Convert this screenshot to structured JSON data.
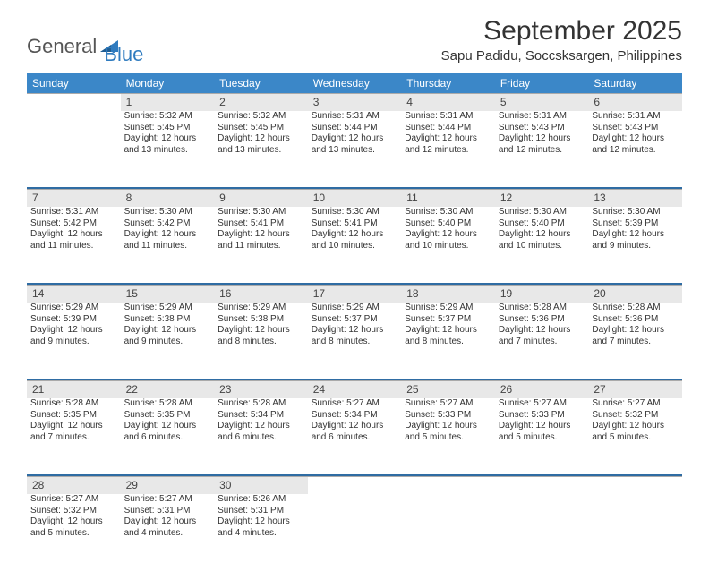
{
  "logo": {
    "general": "General",
    "blue": "Blue"
  },
  "title": "September 2025",
  "location": "Sapu Padidu, Soccsksargen, Philippines",
  "weekday_header_bg": "#3b87c8",
  "weekday_header_fg": "#ffffff",
  "daynum_bg": "#e8e8e8",
  "separator_color": "#2f6ca3",
  "weekdays": [
    "Sunday",
    "Monday",
    "Tuesday",
    "Wednesday",
    "Thursday",
    "Friday",
    "Saturday"
  ],
  "weeks": [
    {
      "nums": [
        "",
        "1",
        "2",
        "3",
        "4",
        "5",
        "6"
      ],
      "cells": [
        null,
        {
          "sunrise": "Sunrise: 5:32 AM",
          "sunset": "Sunset: 5:45 PM",
          "day1": "Daylight: 12 hours",
          "day2": "and 13 minutes."
        },
        {
          "sunrise": "Sunrise: 5:32 AM",
          "sunset": "Sunset: 5:45 PM",
          "day1": "Daylight: 12 hours",
          "day2": "and 13 minutes."
        },
        {
          "sunrise": "Sunrise: 5:31 AM",
          "sunset": "Sunset: 5:44 PM",
          "day1": "Daylight: 12 hours",
          "day2": "and 13 minutes."
        },
        {
          "sunrise": "Sunrise: 5:31 AM",
          "sunset": "Sunset: 5:44 PM",
          "day1": "Daylight: 12 hours",
          "day2": "and 12 minutes."
        },
        {
          "sunrise": "Sunrise: 5:31 AM",
          "sunset": "Sunset: 5:43 PM",
          "day1": "Daylight: 12 hours",
          "day2": "and 12 minutes."
        },
        {
          "sunrise": "Sunrise: 5:31 AM",
          "sunset": "Sunset: 5:43 PM",
          "day1": "Daylight: 12 hours",
          "day2": "and 12 minutes."
        }
      ]
    },
    {
      "nums": [
        "7",
        "8",
        "9",
        "10",
        "11",
        "12",
        "13"
      ],
      "cells": [
        {
          "sunrise": "Sunrise: 5:31 AM",
          "sunset": "Sunset: 5:42 PM",
          "day1": "Daylight: 12 hours",
          "day2": "and 11 minutes."
        },
        {
          "sunrise": "Sunrise: 5:30 AM",
          "sunset": "Sunset: 5:42 PM",
          "day1": "Daylight: 12 hours",
          "day2": "and 11 minutes."
        },
        {
          "sunrise": "Sunrise: 5:30 AM",
          "sunset": "Sunset: 5:41 PM",
          "day1": "Daylight: 12 hours",
          "day2": "and 11 minutes."
        },
        {
          "sunrise": "Sunrise: 5:30 AM",
          "sunset": "Sunset: 5:41 PM",
          "day1": "Daylight: 12 hours",
          "day2": "and 10 minutes."
        },
        {
          "sunrise": "Sunrise: 5:30 AM",
          "sunset": "Sunset: 5:40 PM",
          "day1": "Daylight: 12 hours",
          "day2": "and 10 minutes."
        },
        {
          "sunrise": "Sunrise: 5:30 AM",
          "sunset": "Sunset: 5:40 PM",
          "day1": "Daylight: 12 hours",
          "day2": "and 10 minutes."
        },
        {
          "sunrise": "Sunrise: 5:30 AM",
          "sunset": "Sunset: 5:39 PM",
          "day1": "Daylight: 12 hours",
          "day2": "and 9 minutes."
        }
      ]
    },
    {
      "nums": [
        "14",
        "15",
        "16",
        "17",
        "18",
        "19",
        "20"
      ],
      "cells": [
        {
          "sunrise": "Sunrise: 5:29 AM",
          "sunset": "Sunset: 5:39 PM",
          "day1": "Daylight: 12 hours",
          "day2": "and 9 minutes."
        },
        {
          "sunrise": "Sunrise: 5:29 AM",
          "sunset": "Sunset: 5:38 PM",
          "day1": "Daylight: 12 hours",
          "day2": "and 9 minutes."
        },
        {
          "sunrise": "Sunrise: 5:29 AM",
          "sunset": "Sunset: 5:38 PM",
          "day1": "Daylight: 12 hours",
          "day2": "and 8 minutes."
        },
        {
          "sunrise": "Sunrise: 5:29 AM",
          "sunset": "Sunset: 5:37 PM",
          "day1": "Daylight: 12 hours",
          "day2": "and 8 minutes."
        },
        {
          "sunrise": "Sunrise: 5:29 AM",
          "sunset": "Sunset: 5:37 PM",
          "day1": "Daylight: 12 hours",
          "day2": "and 8 minutes."
        },
        {
          "sunrise": "Sunrise: 5:28 AM",
          "sunset": "Sunset: 5:36 PM",
          "day1": "Daylight: 12 hours",
          "day2": "and 7 minutes."
        },
        {
          "sunrise": "Sunrise: 5:28 AM",
          "sunset": "Sunset: 5:36 PM",
          "day1": "Daylight: 12 hours",
          "day2": "and 7 minutes."
        }
      ]
    },
    {
      "nums": [
        "21",
        "22",
        "23",
        "24",
        "25",
        "26",
        "27"
      ],
      "cells": [
        {
          "sunrise": "Sunrise: 5:28 AM",
          "sunset": "Sunset: 5:35 PM",
          "day1": "Daylight: 12 hours",
          "day2": "and 7 minutes."
        },
        {
          "sunrise": "Sunrise: 5:28 AM",
          "sunset": "Sunset: 5:35 PM",
          "day1": "Daylight: 12 hours",
          "day2": "and 6 minutes."
        },
        {
          "sunrise": "Sunrise: 5:28 AM",
          "sunset": "Sunset: 5:34 PM",
          "day1": "Daylight: 12 hours",
          "day2": "and 6 minutes."
        },
        {
          "sunrise": "Sunrise: 5:27 AM",
          "sunset": "Sunset: 5:34 PM",
          "day1": "Daylight: 12 hours",
          "day2": "and 6 minutes."
        },
        {
          "sunrise": "Sunrise: 5:27 AM",
          "sunset": "Sunset: 5:33 PM",
          "day1": "Daylight: 12 hours",
          "day2": "and 5 minutes."
        },
        {
          "sunrise": "Sunrise: 5:27 AM",
          "sunset": "Sunset: 5:33 PM",
          "day1": "Daylight: 12 hours",
          "day2": "and 5 minutes."
        },
        {
          "sunrise": "Sunrise: 5:27 AM",
          "sunset": "Sunset: 5:32 PM",
          "day1": "Daylight: 12 hours",
          "day2": "and 5 minutes."
        }
      ]
    },
    {
      "nums": [
        "28",
        "29",
        "30",
        "",
        "",
        "",
        ""
      ],
      "cells": [
        {
          "sunrise": "Sunrise: 5:27 AM",
          "sunset": "Sunset: 5:32 PM",
          "day1": "Daylight: 12 hours",
          "day2": "and 5 minutes."
        },
        {
          "sunrise": "Sunrise: 5:27 AM",
          "sunset": "Sunset: 5:31 PM",
          "day1": "Daylight: 12 hours",
          "day2": "and 4 minutes."
        },
        {
          "sunrise": "Sunrise: 5:26 AM",
          "sunset": "Sunset: 5:31 PM",
          "day1": "Daylight: 12 hours",
          "day2": "and 4 minutes."
        },
        null,
        null,
        null,
        null
      ]
    }
  ]
}
